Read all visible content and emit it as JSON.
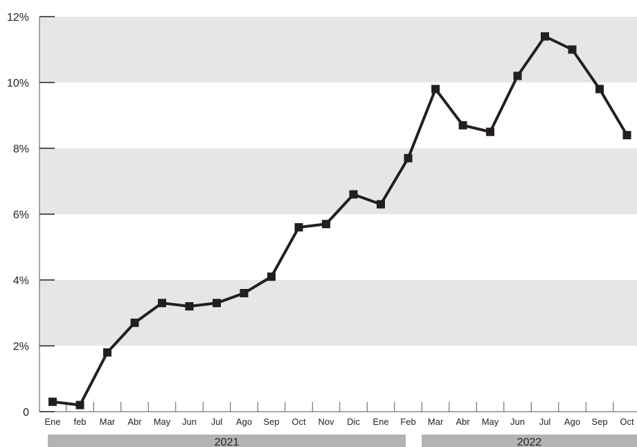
{
  "chart_data": {
    "type": "line",
    "categories": [
      "Ene",
      "feb",
      "Mar",
      "Abr",
      "May",
      "Jun",
      "Jul",
      "Ago",
      "Sep",
      "Oct",
      "Nov",
      "Dic",
      "Ene",
      "Feb",
      "Mar",
      "Abr",
      "May",
      "Jun",
      "Jul",
      "Ago",
      "Sep",
      "Oct"
    ],
    "series": [
      {
        "values": [
          0.3,
          0.2,
          1.8,
          2.7,
          3.3,
          3.2,
          3.3,
          3.6,
          4.1,
          5.6,
          5.7,
          6.6,
          6.3,
          7.7,
          9.8,
          8.7,
          8.5,
          10.2,
          11.4,
          11.0,
          9.8,
          8.4
        ]
      }
    ],
    "ylim": [
      0,
      12
    ],
    "yticks": [
      {
        "value": 0,
        "label": "0"
      },
      {
        "value": 2,
        "label": "2%"
      },
      {
        "value": 4,
        "label": "4%"
      },
      {
        "value": 6,
        "label": "6%"
      },
      {
        "value": 8,
        "label": "8%"
      },
      {
        "value": 10,
        "label": "10%"
      },
      {
        "value": 12,
        "label": "12%"
      }
    ],
    "year_groups": [
      {
        "label": "2021",
        "from": 0,
        "to": 12
      },
      {
        "label": "2022",
        "from": 13,
        "to": 21
      }
    ],
    "grid_bands": "alternating gray horizontal bands",
    "colors": {
      "line": "#231f20",
      "band": "#e6e6e7",
      "year_bar": "#b3b3b3",
      "axis": "#555555"
    }
  }
}
